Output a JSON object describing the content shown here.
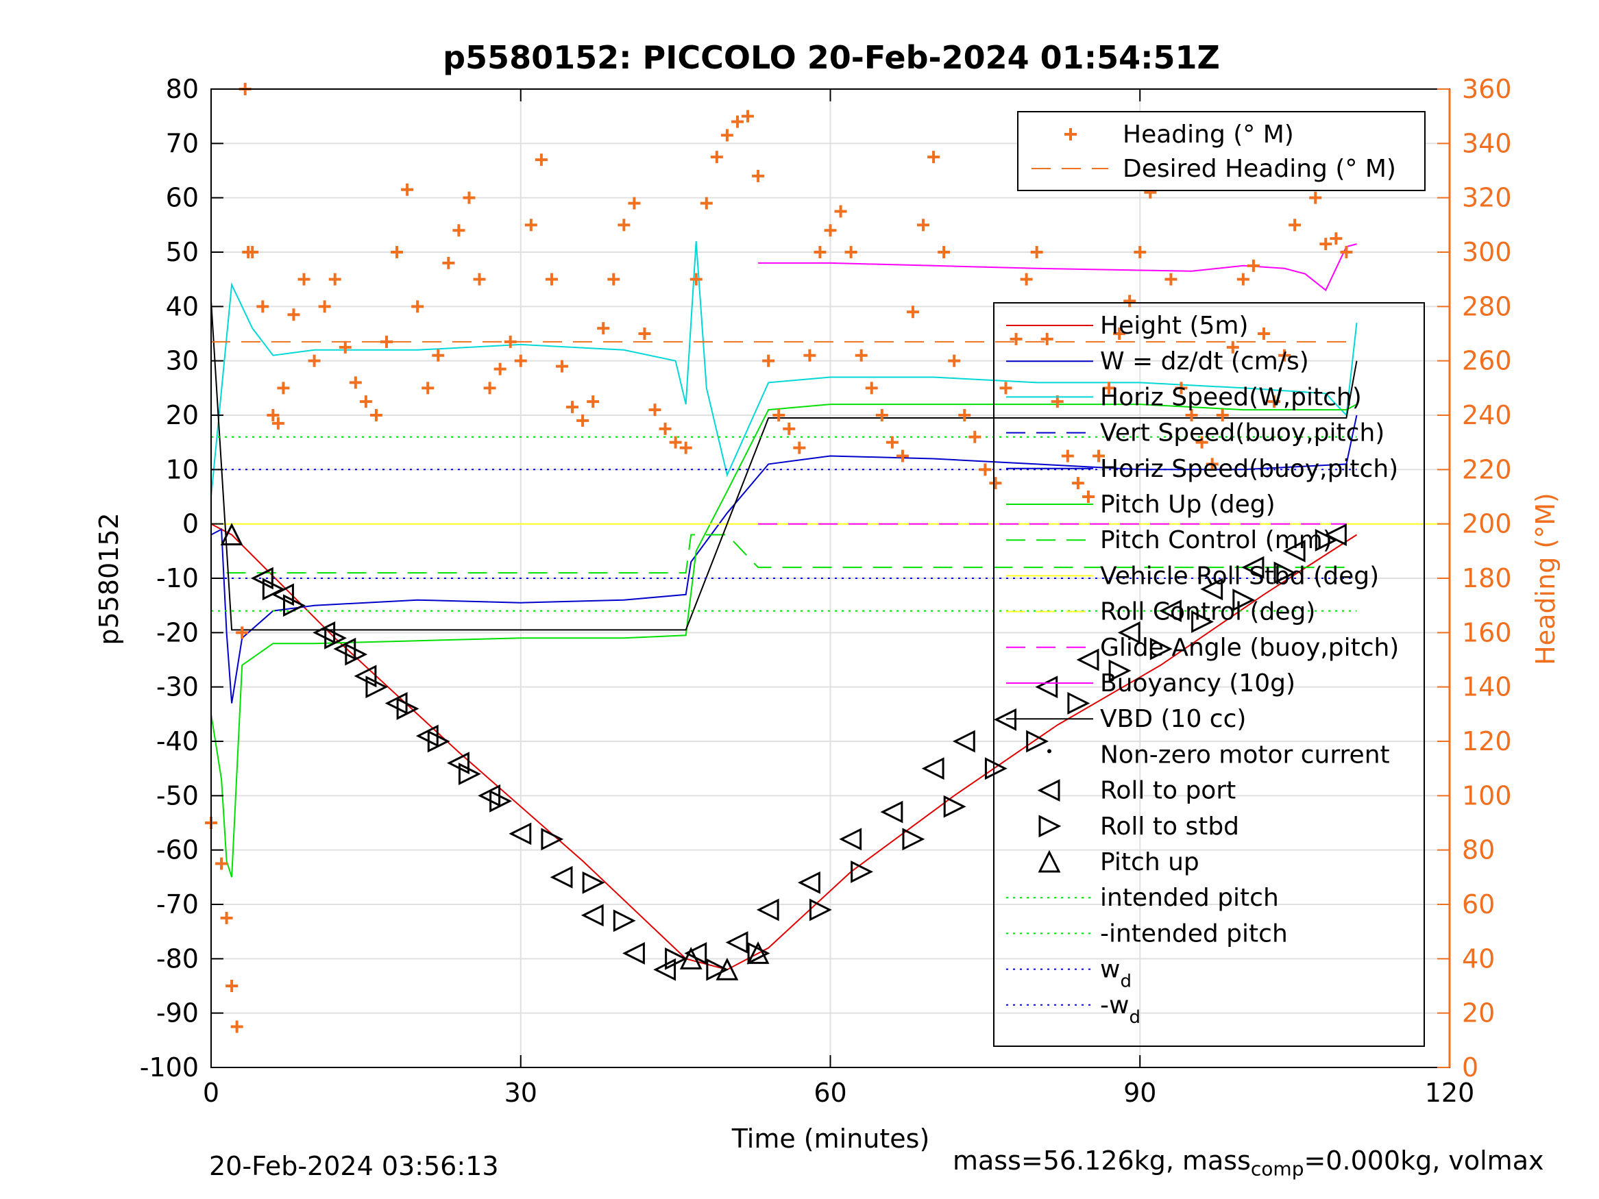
{
  "chart_data": {
    "type": "line",
    "title": "p5580152: PICCOLO 20-Feb-2024 01:54:51Z",
    "xlabel": "Time (minutes)",
    "ylabel": "p5580152",
    "y2label": "Heading (°M)",
    "xlim": [
      0,
      120
    ],
    "ylim": [
      -100,
      80
    ],
    "y2lim": [
      0,
      360
    ],
    "xticks": [
      0,
      30,
      60,
      90,
      120
    ],
    "yticks": [
      -100,
      -90,
      -80,
      -70,
      -60,
      -50,
      -40,
      -30,
      -20,
      -10,
      0,
      10,
      20,
      30,
      40,
      50,
      60,
      70,
      80
    ],
    "y2ticks": [
      0,
      20,
      40,
      60,
      80,
      100,
      120,
      140,
      160,
      180,
      200,
      220,
      240,
      260,
      280,
      300,
      320,
      340,
      360
    ],
    "grid": true,
    "colors": {
      "heading": "#f07020",
      "height": "#e00000",
      "w": "#0000cc",
      "horiz_speed_w": "#00d8d8",
      "pitch": "#00e000",
      "roll": "#ffff20",
      "glide": "#ff00ff",
      "vbd": "#000000"
    },
    "legend_top": {
      "placement": "top-right",
      "entries": [
        "Heading (° M)",
        "Desired Heading (° M)"
      ]
    },
    "legend_main": {
      "placement": "right",
      "entries": [
        "Height (5m)",
        "W = dz/dt (cm/s)",
        "Horiz Speed(W,pitch)",
        "Vert Speed(buoy,pitch)",
        "Horiz Speed(buoy,pitch)",
        "Pitch Up (deg)",
        "Pitch Control (mm)",
        "Vehicle Roll Stbd (deg)",
        "Roll Control (deg)",
        "Glide Angle (buoy,pitch)",
        "Buoyancy (10g)",
        "VBD (10 cc)",
        "Non-zero motor current",
        "Roll to port",
        "Roll to stbd",
        "Pitch up",
        "intended pitch",
        "-intended pitch",
        "w_d",
        "-w_d"
      ]
    },
    "series": [
      {
        "name": "Height (5m)",
        "x": [
          0,
          2,
          12,
          24,
          36,
          46,
          50,
          54,
          62,
          72,
          82,
          92,
          102,
          111
        ],
        "values": [
          0,
          -2,
          -21,
          -42,
          -62,
          -80,
          -82,
          -78,
          -64,
          -50,
          -37,
          -26,
          -13,
          -2
        ]
      },
      {
        "name": "W = dz/dt (cm/s)",
        "x": [
          0,
          1,
          1.5,
          2,
          3,
          6,
          10,
          20,
          30,
          40,
          46,
          46.5,
          50,
          54,
          60,
          70,
          80,
          90,
          100,
          110,
          111
        ],
        "values": [
          -2,
          -1,
          -20,
          -33,
          -21,
          -16,
          -15,
          -14,
          -14.5,
          -14,
          -13,
          -7,
          2,
          11,
          12.5,
          12,
          11,
          10,
          10,
          11,
          20
        ]
      },
      {
        "name": "Horiz Speed(W,pitch)",
        "x": [
          0,
          2,
          4,
          6,
          10,
          20,
          30,
          40,
          45,
          46,
          47,
          48,
          50,
          54,
          60,
          70,
          80,
          90,
          100,
          108,
          110,
          111
        ],
        "values": [
          5,
          44,
          36,
          31,
          32,
          32,
          33,
          32,
          30,
          22,
          52,
          25,
          9,
          26,
          27,
          27,
          26,
          26,
          25,
          24,
          20,
          37
        ]
      },
      {
        "name": "Pitch Up (deg)",
        "x": [
          0,
          1,
          1.5,
          2,
          3,
          6,
          10,
          20,
          30,
          40,
          46,
          47,
          50,
          54,
          60,
          70,
          80,
          90,
          100,
          110,
          111
        ],
        "values": [
          -35,
          -47,
          -62,
          -65,
          -26,
          -22,
          -22,
          -21.5,
          -21,
          -21,
          -20.5,
          -5,
          6,
          21,
          22,
          22,
          22,
          22,
          21,
          21,
          22
        ]
      },
      {
        "name": "Pitch Control (mm)",
        "x": [
          1.5,
          46,
          46.5,
          50,
          53,
          110
        ],
        "values": [
          -9,
          -9,
          -2,
          -2,
          -8,
          -8
        ]
      },
      {
        "name": "Vehicle Roll Stbd (deg)",
        "x": [
          0,
          120
        ],
        "values": [
          0,
          0
        ]
      },
      {
        "name": "Glide Angle (buoy,pitch)",
        "x": [
          53,
          110
        ],
        "values": [
          0,
          0
        ]
      },
      {
        "name": "Buoyancy (10g)",
        "x": [
          53,
          60,
          70,
          80,
          95,
          100,
          104,
          106,
          108,
          110,
          111
        ],
        "values": [
          48,
          48,
          47.5,
          47,
          46.5,
          47.5,
          47,
          46,
          43,
          51,
          51.5
        ]
      },
      {
        "name": "VBD (10 cc)",
        "x": [
          0,
          2,
          4,
          46,
          50,
          54,
          110,
          111
        ],
        "values": [
          41,
          -19.5,
          -19.5,
          -19.5,
          0,
          19.5,
          19.5,
          30
        ]
      },
      {
        "name": "intended pitch",
        "x": [
          0,
          111
        ],
        "values": [
          16,
          16
        ]
      },
      {
        "name": "-intended pitch",
        "x": [
          0,
          111
        ],
        "values": [
          -16,
          -16
        ]
      },
      {
        "name": "w_d",
        "x": [
          0,
          111
        ],
        "values": [
          10,
          10
        ]
      },
      {
        "name": "-w_d",
        "x": [
          0,
          111
        ],
        "values": [
          -10,
          -10
        ]
      },
      {
        "name": "Desired Heading (° M)",
        "axis": "right",
        "x": [
          0,
          111
        ],
        "values": [
          267,
          267
        ]
      },
      {
        "name": "Heading (° M)",
        "axis": "right",
        "x": [
          0,
          1,
          1.5,
          2,
          2.5,
          3,
          3.3,
          3.6,
          4,
          5,
          6,
          6.5,
          7,
          8,
          9,
          10,
          11,
          12,
          13,
          14,
          15,
          16,
          17,
          18,
          19,
          20,
          21,
          22,
          23,
          24,
          25,
          26,
          27,
          28,
          29,
          30,
          31,
          32,
          33,
          34,
          35,
          36,
          37,
          38,
          39,
          40,
          41,
          42,
          43,
          44,
          45,
          46,
          47,
          48,
          49,
          50,
          51,
          52,
          53,
          54,
          55,
          56,
          57,
          58,
          59,
          60,
          61,
          62,
          63,
          64,
          65,
          66,
          67,
          68,
          69,
          70,
          71,
          72,
          73,
          74,
          75,
          76,
          77,
          78,
          79,
          80,
          81,
          82,
          83,
          84,
          85,
          86,
          87,
          88,
          89,
          90,
          91,
          92,
          93,
          94,
          95,
          96,
          97,
          98,
          99,
          100,
          101,
          102,
          103,
          104,
          105,
          106,
          107,
          108,
          109,
          110
        ],
        "values": [
          90,
          75,
          55,
          30,
          15,
          160,
          360,
          300,
          300,
          280,
          240,
          237,
          250,
          277,
          290,
          260,
          280,
          290,
          265,
          252,
          245,
          240,
          267,
          300,
          323,
          280,
          250,
          262,
          296,
          308,
          320,
          290,
          250,
          257,
          267,
          260,
          310,
          334,
          290,
          258,
          243,
          238,
          245,
          272,
          290,
          310,
          318,
          270,
          242,
          235,
          230,
          228,
          290,
          318,
          335,
          343,
          348,
          350,
          328,
          260,
          240,
          235,
          228,
          262,
          300,
          308,
          315,
          300,
          262,
          250,
          240,
          230,
          225,
          278,
          310,
          335,
          300,
          260,
          240,
          232,
          220,
          215,
          250,
          268,
          290,
          300,
          268,
          245,
          225,
          215,
          210,
          225,
          250,
          270,
          282,
          300,
          322,
          325,
          290,
          250,
          240,
          230,
          222,
          240,
          265,
          290,
          295,
          270,
          245,
          262,
          310,
          335,
          320,
          303,
          305,
          300
        ]
      }
    ],
    "markers": {
      "roll_to_port": {
        "label": "Roll to port",
        "x": [
          5,
          7,
          11,
          13,
          15,
          18,
          21,
          24,
          27,
          30,
          34,
          37,
          41,
          44,
          47,
          51,
          54,
          58,
          62,
          66,
          70,
          73,
          77,
          81,
          85,
          89,
          93,
          97,
          101,
          105,
          109
        ],
        "values": [
          -10,
          -13,
          -20,
          -23,
          -28,
          -33,
          -39,
          -44,
          -50,
          -57,
          -65,
          -72,
          -79,
          -82,
          -79,
          -77,
          -71,
          -66,
          -58,
          -53,
          -45,
          -40,
          -36,
          -30,
          -25,
          -20,
          -16,
          -12,
          -8,
          -5,
          -2
        ]
      },
      "roll_to_stbd": {
        "label": "Roll to stbd",
        "x": [
          6,
          8,
          12,
          14,
          16,
          19,
          22,
          25,
          28,
          33,
          37,
          40,
          45,
          49,
          53,
          59,
          63,
          68,
          72,
          76,
          80,
          84,
          88,
          92,
          96,
          100,
          104,
          108
        ],
        "values": [
          -12,
          -15,
          -21,
          -24,
          -30,
          -34,
          -40,
          -46,
          -51,
          -58,
          -66,
          -73,
          -80,
          -82,
          -79,
          -71,
          -64,
          -58,
          -52,
          -45,
          -40,
          -33,
          -27,
          -23,
          -18,
          -14,
          -9,
          -3
        ]
      },
      "pitch_up": {
        "label": "Pitch up",
        "x": [
          2,
          46.5,
          50,
          53
        ],
        "values": [
          -2,
          -80,
          -82,
          -79
        ]
      }
    }
  },
  "footer": {
    "left": "20-Feb-2024 03:56:13",
    "right_a": "mass=56.126kg, mass",
    "right_sub": "comp",
    "right_b": "=0.000kg, volmax"
  }
}
